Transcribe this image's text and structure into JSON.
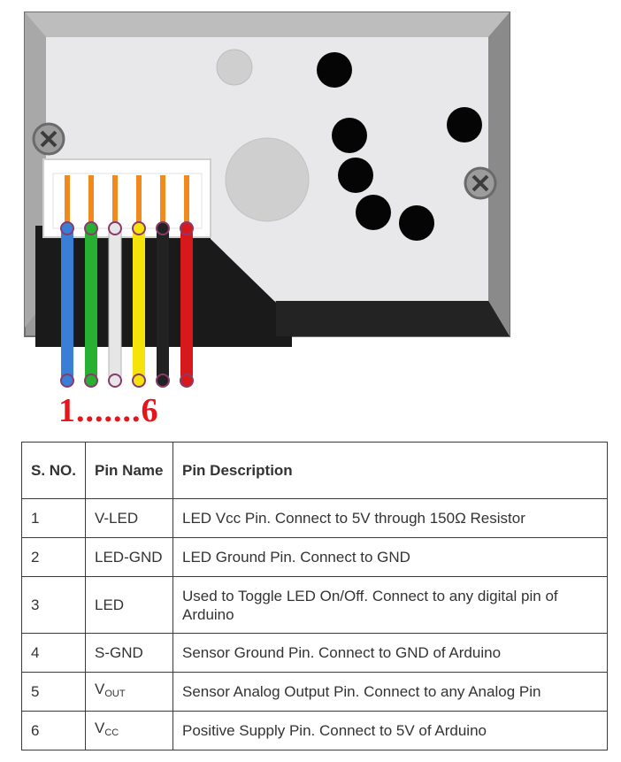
{
  "diagram": {
    "pin_range": {
      "first": "1",
      "dots": ".......",
      "last": "6"
    },
    "wire_colors": [
      "#3a7fd6",
      "#27b032",
      "#e6e6e6",
      "#f5e40c",
      "#222222",
      "#d8191c"
    ]
  },
  "table": {
    "headers": {
      "sno": "S. NO.",
      "name": "Pin Name",
      "desc": "Pin Description"
    },
    "rows": [
      {
        "sno": "1",
        "name": "V-LED",
        "name_sub": "",
        "desc": "LED Vcc Pin. Connect to 5V through 150Ω Resistor"
      },
      {
        "sno": "2",
        "name": "LED-GND",
        "name_sub": "",
        "desc": "LED Ground Pin. Connect to GND"
      },
      {
        "sno": "3",
        "name": "LED",
        "name_sub": "",
        "desc": "Used to Toggle LED On/Off. Connect to any digital pin of Arduino"
      },
      {
        "sno": "4",
        "name": "S-GND",
        "name_sub": "",
        "desc": "Sensor Ground Pin. Connect to GND of Arduino"
      },
      {
        "sno": "5",
        "name": "V",
        "name_sub": "OUT",
        "desc": "Sensor Analog Output Pin. Connect to any Analog Pin"
      },
      {
        "sno": "6",
        "name": "V",
        "name_sub": "CC",
        "desc": "Positive Supply Pin. Connect to 5V of Arduino"
      }
    ]
  }
}
